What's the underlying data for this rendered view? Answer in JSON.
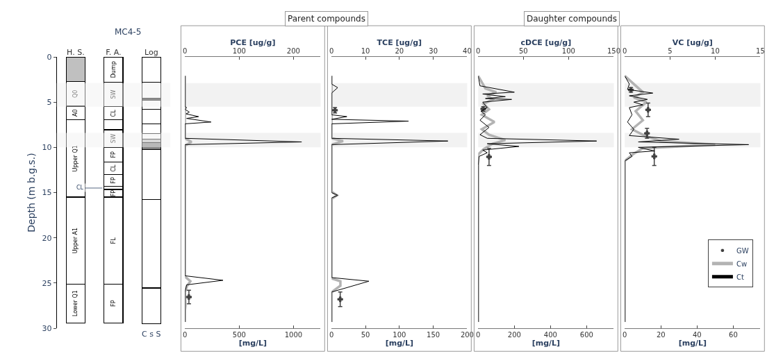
{
  "chart_data": [
    {
      "type": "bar",
      "title": "MC4-5",
      "ylabel": "Depth (m b.g.s.)",
      "stacked": true,
      "categories": [
        "H. S.",
        "F. A.",
        "Log"
      ],
      "ylim": [
        30,
        0
      ],
      "yticks": [
        0,
        5,
        10,
        15,
        20,
        25,
        30
      ],
      "annotations": [
        {
          "text": "CL",
          "x": "F. A.",
          "y": 14.5
        },
        "C s S"
      ],
      "bands": [
        {
          "axis": "y",
          "from": 2.9,
          "to": 5.5,
          "color": "#f2f2f2"
        },
        {
          "axis": "y",
          "from": 8.4,
          "to": 10.0,
          "color": "#f2f2f2"
        }
      ],
      "series": [
        {
          "values": [
            2.75,
            2.8,
            2.8
          ],
          "colors": [
            "#c0c0c0",
            "#ffffff",
            "#ffffff"
          ],
          "value_labels": [
            null,
            "Dump",
            null
          ]
        },
        {
          "values": [
            2.7,
            2.7,
            1.75
          ],
          "colors": [
            "#ffffff",
            "#ffffff",
            "#ffffff"
          ],
          "value_labels": [
            "Q0",
            "SW",
            null
          ]
        },
        {
          "values": [
            1.5,
            1.45,
            0.25
          ],
          "colors": [
            "#ffffff",
            "#ffffff",
            "#333333"
          ],
          "value_labels": [
            "A0",
            "CL",
            null
          ]
        },
        {
          "values": [
            8.55,
            1.1,
            1.0
          ],
          "colors": [
            "#ffffff",
            "#ffffff",
            "#ffffff"
          ],
          "value_labels": [
            "Upper Q1",
            null,
            null
          ]
        },
        {
          "values": [
            9.6,
            1.95,
            1.6
          ],
          "colors": [
            "#ffffff",
            "#ffffff",
            "#ffffff"
          ],
          "value_labels": [
            "Upper A1",
            "SW",
            null
          ]
        },
        {
          "values": [
            4.3,
            1.6,
            1.1
          ],
          "colors": [
            "#ffffff",
            "#ffffff",
            "#ffffff"
          ],
          "value_labels": [
            "Lower Q1",
            "FP",
            null
          ]
        },
        {
          "values": [
            null,
            1.4,
            0.6
          ],
          "colors": [
            "#ffffff",
            "#ffffff",
            "#ffffff"
          ],
          "value_labels": [
            null,
            "CL",
            null
          ]
        },
        {
          "values": [
            null,
            1.3,
            0.35
          ],
          "colors": [
            "#ffffff",
            "#ffffff",
            "#bfbfbf"
          ],
          "value_labels": [
            null,
            "FP",
            null
          ]
        },
        {
          "values": [
            null,
            0.35,
            0.8
          ],
          "colors": [
            "#ffffff",
            "#ffffff",
            "#808080"
          ],
          "value_labels": [
            null,
            null,
            null
          ]
        },
        {
          "values": [
            null,
            0.85,
            5.5
          ],
          "colors": [
            "#ffffff",
            "#ffffff",
            "#ffffff"
          ],
          "value_labels": [
            null,
            "FP",
            null
          ]
        },
        {
          "values": [
            null,
            9.6,
            9.8
          ],
          "colors": [
            "#ffffff",
            "#ffffff",
            "#ffffff"
          ],
          "value_labels": [
            null,
            "FL",
            null
          ]
        },
        {
          "values": [
            null,
            4.3,
            3.95
          ],
          "colors": [
            "#ffffff",
            "#ffffff",
            "#ffffff"
          ],
          "value_labels": [
            null,
            "FP",
            null
          ]
        }
      ]
    },
    {
      "type": "line",
      "x2label": "PCE [ug/g]",
      "xlabel": "[mg/L]",
      "annotations": [
        "Parent compounds"
      ],
      "ylim": [
        30,
        0
      ],
      "tick_labels": "x",
      "xlim": [
        0,
        1250
      ],
      "xticks": [
        0,
        500,
        1000
      ],
      "x2lim": [
        0,
        250
      ],
      "x2ticks": [
        0,
        100,
        200
      ],
      "bands": [
        {
          "axis": "y",
          "from": 2.9,
          "to": 5.5,
          "color": "#f2f2f2"
        },
        {
          "axis": "y",
          "from": 8.4,
          "to": 10.0,
          "color": "#f2f2f2"
        }
      ],
      "series": [
        {
          "type": "line",
          "axis": "x2",
          "color": "#000000",
          "x": [
            0,
            0,
            3,
            0,
            8,
            2,
            25,
            3,
            48,
            0,
            0,
            215,
            0,
            0,
            70,
            3,
            0,
            0
          ],
          "values": [
            2.1,
            5.5,
            5.6,
            5.8,
            6.1,
            6.3,
            6.6,
            6.8,
            7.2,
            7.4,
            9.0,
            9.4,
            9.7,
            24.2,
            24.7,
            25.2,
            26,
            29.3
          ]
        },
        {
          "type": "line",
          "color": "#b3b3b3",
          "x": [
            0,
            0,
            60,
            0,
            0,
            50,
            20,
            0,
            5,
            0,
            0
          ],
          "values": [
            2.1,
            9.0,
            9.4,
            9.8,
            24.3,
            24.8,
            25.3,
            26,
            27.5,
            28,
            29.3
          ]
        },
        {
          "type": "scatter",
          "marker": "cross",
          "color": "#404040",
          "x": [
            36
          ],
          "values": [
            26.55
          ],
          "errors": [
            [
              25.8,
              27.3
            ]
          ]
        }
      ]
    },
    {
      "type": "line",
      "x2label": "TCE [ug/g]",
      "xlabel": "[mg/L]",
      "ylim": [
        30,
        0
      ],
      "tick_labels": "x",
      "xlim": [
        0,
        200
      ],
      "xticks": [
        0,
        50,
        100,
        150,
        200
      ],
      "x2lim": [
        0,
        40
      ],
      "x2ticks": [
        0,
        10,
        20,
        30,
        40
      ],
      "bands": [
        {
          "axis": "y",
          "from": 2.9,
          "to": 5.5,
          "color": "#f2f2f2"
        },
        {
          "axis": "y",
          "from": 8.4,
          "to": 10.0,
          "color": "#f2f2f2"
        }
      ],
      "series": [
        {
          "type": "line",
          "axis": "x2",
          "color": "#000000",
          "x": [
            0,
            0,
            1.8,
            0,
            0,
            4.5,
            0,
            22.7,
            0,
            0,
            34.3,
            0,
            0,
            1.8,
            0,
            0,
            11,
            0,
            0
          ],
          "values": [
            2.1,
            3.0,
            3.4,
            4.0,
            6.4,
            6.6,
            6.9,
            7.1,
            7.4,
            9.0,
            9.3,
            9.7,
            15.0,
            15.3,
            15.6,
            24.4,
            24.8,
            26,
            29.3
          ]
        },
        {
          "type": "line",
          "color": "#b3b3b3",
          "x": [
            0,
            0,
            17,
            0,
            0,
            8,
            0,
            0,
            13,
            13,
            0,
            0
          ],
          "values": [
            2.1,
            9.0,
            9.3,
            9.7,
            14.9,
            15.3,
            15.7,
            24.5,
            24.8,
            25.3,
            26,
            29.3
          ]
        },
        {
          "type": "scatter",
          "marker": "cross",
          "color": "#404040",
          "x": [
            5,
            12.7
          ],
          "values": [
            5.9,
            26.8
          ],
          "errors": [
            [
              5.6,
              6.2
            ],
            [
              26.0,
              27.6
            ]
          ]
        }
      ]
    },
    {
      "type": "line",
      "x2label": "cDCE [ug/g]",
      "xlabel": "[mg/L]",
      "annotations": [
        "Daughter compounds"
      ],
      "ylim": [
        30,
        0
      ],
      "tick_labels": "x",
      "xlim": [
        0,
        750
      ],
      "xticks": [
        0,
        200,
        400,
        600
      ],
      "x2lim": [
        0,
        150
      ],
      "x2ticks": [
        0,
        50,
        100,
        150
      ],
      "bands": [
        {
          "axis": "y",
          "from": 2.9,
          "to": 5.5,
          "color": "#f2f2f2"
        },
        {
          "axis": "y",
          "from": 8.4,
          "to": 10.0,
          "color": "#f2f2f2"
        }
      ],
      "series": [
        {
          "type": "line",
          "axis": "x2",
          "color": "#000000",
          "x": [
            0,
            2,
            40,
            5,
            30,
            8,
            37,
            5,
            10,
            3,
            8,
            2,
            12,
            2,
            10,
            131,
            10,
            45,
            5,
            10,
            1,
            0,
            0
          ],
          "values": [
            2.1,
            3.2,
            3.9,
            4.1,
            4.4,
            4.6,
            4.7,
            5.0,
            5.6,
            6.0,
            6.4,
            7.0,
            7.8,
            8.6,
            9.0,
            9.3,
            9.6,
            9.9,
            10.3,
            10.6,
            11.0,
            12,
            29.3
          ]
        },
        {
          "type": "line",
          "color": "#b3b3b3",
          "x": [
            0,
            40,
            100,
            50,
            80,
            30,
            60,
            20,
            90,
            20,
            60,
            150,
            80,
            30,
            0,
            0
          ],
          "values": [
            2.1,
            3.5,
            3.9,
            4.3,
            4.7,
            5.2,
            5.8,
            6.4,
            7.2,
            8.0,
            8.6,
            9.2,
            9.6,
            10.2,
            10.8,
            29.3
          ]
        },
        {
          "type": "scatter",
          "marker": "cross",
          "color": "#404040",
          "x": [
            28,
            60
          ],
          "values": [
            5.75,
            11.05
          ],
          "errors": [
            [
              5.5,
              6.0
            ],
            [
              10.1,
              12.0
            ]
          ]
        }
      ]
    },
    {
      "type": "line",
      "x2label": "VC [ug/g]",
      "xlabel": "[mg/L]",
      "legend": "bottom right",
      "ylim": [
        30,
        0
      ],
      "tick_labels": "x",
      "xlim": [
        0,
        75
      ],
      "xticks": [
        0,
        20,
        40,
        60
      ],
      "x2lim": [
        0,
        15
      ],
      "x2ticks": [
        0,
        5,
        10,
        15
      ],
      "bands": [
        {
          "axis": "y",
          "from": 2.9,
          "to": 5.5,
          "color": "#f2f2f2"
        },
        {
          "axis": "y",
          "from": 8.4,
          "to": 10.0,
          "color": "#f2f2f2"
        }
      ],
      "series": [
        {
          "name": "Ct",
          "type": "line",
          "axis": "x2",
          "color": "#000000",
          "x": [
            0,
            0.5,
            0.3,
            3.1,
            0.5,
            2.5,
            1.0,
            2.0,
            0.5,
            0.8,
            0.3,
            1.0,
            0.5,
            6.0,
            1.5,
            13.7,
            1.5,
            3.3,
            0.5,
            0.8,
            0,
            0
          ],
          "values": [
            2.1,
            3.0,
            3.6,
            4.0,
            4.3,
            4.7,
            5.0,
            5.3,
            5.6,
            6.4,
            7.2,
            8.0,
            8.7,
            9.1,
            9.4,
            9.7,
            10.0,
            10.4,
            10.6,
            11.0,
            11.5,
            29.3
          ]
        },
        {
          "name": "Cw",
          "type": "line",
          "color": "#b3b3b3",
          "x": [
            0,
            10,
            5,
            12,
            6,
            10,
            4,
            12,
            20,
            50,
            10,
            5,
            0,
            0
          ],
          "values": [
            2.1,
            3.9,
            4.5,
            5.0,
            6.0,
            7.0,
            8.0,
            8.8,
            9.3,
            9.7,
            10.1,
            10.7,
            11.5,
            29.3
          ]
        },
        {
          "name": "GW",
          "type": "scatter",
          "marker": "cross",
          "color": "#404040",
          "x": [
            3.4,
            12.9,
            12.3,
            16.3
          ],
          "values": [
            3.65,
            5.85,
            8.45,
            11.0
          ],
          "errors": [
            [
              3.4,
              3.9
            ],
            [
              5.1,
              6.6
            ],
            [
              7.9,
              9.0
            ],
            [
              10.0,
              12.0
            ]
          ]
        }
      ]
    }
  ]
}
